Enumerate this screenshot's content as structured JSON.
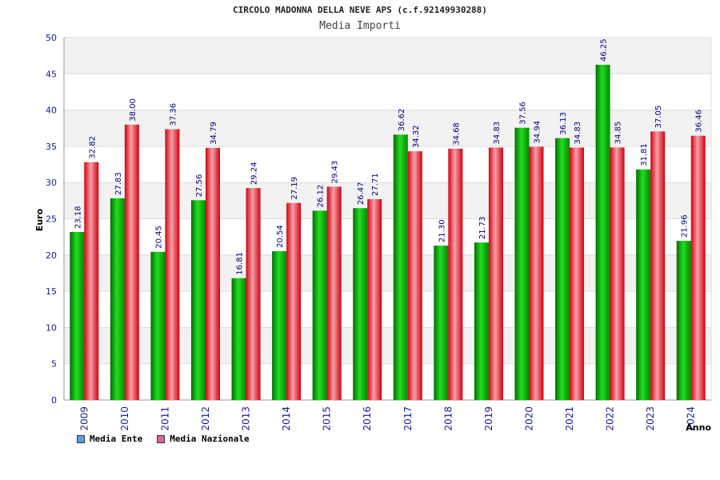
{
  "colors": {
    "ente": "#00b000",
    "nazionale": "#e8202a",
    "legend_ente": "#5aa0e8",
    "legend_nazionale": "#e060a0",
    "axis_text": "#1a1aa0",
    "value_text": "#000080"
  },
  "chart_data": {
    "type": "bar",
    "title": "CIRCOLO MADONNA DELLA NEVE APS (c.f.92149930288)",
    "subtitle": "Media Importi",
    "xlabel": "Anno",
    "ylabel": "Euro",
    "ylim": [
      0,
      50
    ],
    "yticks": [
      "0",
      "5",
      "10",
      "15",
      "20",
      "25",
      "30",
      "35",
      "40",
      "45",
      "50"
    ],
    "grid": true,
    "legend_position": "bottom-left",
    "categories": [
      "2009",
      "2010",
      "2011",
      "2012",
      "2013",
      "2014",
      "2015",
      "2016",
      "2017",
      "2018",
      "2019",
      "2020",
      "2021",
      "2022",
      "2023",
      "2024"
    ],
    "series": [
      {
        "name": "Media Ente",
        "values": [
          23.18,
          27.83,
          20.45,
          27.56,
          16.81,
          20.54,
          26.12,
          26.47,
          36.62,
          21.3,
          21.73,
          37.56,
          36.13,
          46.25,
          31.81,
          21.96
        ],
        "labels": [
          "23.18",
          "27.83",
          "20.45",
          "27.56",
          "16.81",
          "20.54",
          "26.12",
          "26.47",
          "36.62",
          "21.30",
          "21.73",
          "37.56",
          "36.13",
          "46.25",
          "31.81",
          "21.96"
        ]
      },
      {
        "name": "Media Nazionale",
        "values": [
          32.82,
          38.0,
          37.36,
          34.79,
          29.24,
          27.19,
          29.43,
          27.71,
          34.32,
          34.68,
          34.83,
          34.94,
          34.83,
          34.85,
          37.05,
          36.46
        ],
        "labels": [
          "32.82",
          "38.00",
          "37.36",
          "34.79",
          "29.24",
          "27.19",
          "29.43",
          "27.71",
          "34.32",
          "34.68",
          "34.83",
          "34.94",
          "34.83",
          "34.85",
          "37.05",
          "36.46"
        ]
      }
    ]
  }
}
